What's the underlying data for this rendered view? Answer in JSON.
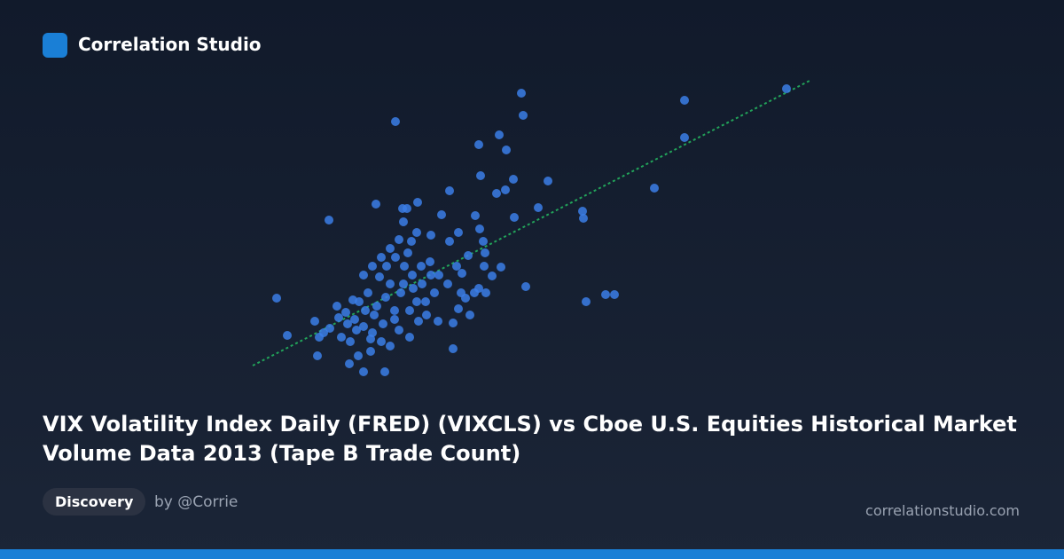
{
  "brand": "Correlation Studio",
  "title": "VIX Volatility Index Daily (FRED) (VIXCLS) vs Cboe U.S. Equities Historical Market Volume Data 2013 (Tape B Trade Count)",
  "tag": "Discovery",
  "author": "by @Corrie",
  "site": "correlationstudio.com",
  "chart_data": {
    "type": "scatter",
    "color": "#3b7ee6",
    "trend_color": "#22a35a",
    "xlim": [
      0,
      640
    ],
    "ylim": [
      0,
      335
    ],
    "x": [
      32,
      44,
      78,
      91,
      166,
      308,
      310,
      260,
      283,
      291,
      492,
      492,
      607,
      458,
      377,
      378,
      338,
      313,
      381,
      403,
      413,
      231,
      154,
      130,
      114,
      124,
      138,
      262,
      280,
      299,
      290,
      327,
      300,
      227,
      218,
      191,
      174,
      144,
      179,
      175,
      184,
      206,
      227,
      237,
      256,
      261,
      265,
      267,
      285,
      275,
      260,
      245,
      237,
      250,
      231,
      214,
      201,
      190,
      182,
      170,
      160,
      150,
      140,
      130,
      120,
      110,
      100,
      92,
      85,
      75,
      80,
      105,
      115,
      125,
      135,
      145,
      155,
      165,
      175,
      185,
      195,
      205,
      215,
      225,
      235,
      240,
      130,
      140,
      150,
      160,
      170,
      180,
      190,
      200,
      210,
      165,
      152,
      142,
      132,
      122,
      112,
      102,
      160,
      172,
      182,
      192,
      156,
      166,
      176,
      186,
      196,
      206,
      248,
      241,
      266,
      255,
      268,
      118,
      148,
      138
    ],
    "y": [
      89,
      47,
      24,
      177,
      288,
      320,
      295,
      262,
      273,
      256,
      312,
      270,
      325,
      213,
      187,
      179,
      221,
      102,
      85,
      93,
      93,
      32,
      6,
      6,
      15,
      24,
      29,
      227,
      207,
      223,
      211,
      191,
      180,
      210,
      183,
      197,
      190,
      195,
      190,
      175,
      153,
      160,
      153,
      163,
      182,
      167,
      153,
      140,
      124,
      114,
      100,
      89,
      77,
      70,
      61,
      63,
      70,
      85,
      45,
      53,
      35,
      40,
      50,
      57,
      65,
      73,
      80,
      55,
      50,
      63,
      45,
      45,
      40,
      85,
      95,
      80,
      90,
      75,
      105,
      115,
      125,
      130,
      115,
      105,
      125,
      95,
      115,
      125,
      135,
      145,
      155,
      140,
      163,
      85,
      95,
      65,
      60,
      70,
      75,
      53,
      60,
      67,
      105,
      95,
      75,
      63,
      125,
      135,
      125,
      100,
      105,
      115,
      137,
      117,
      125,
      95,
      95,
      87,
      113,
      43
    ],
    "trend": {
      "x": [
        5,
        635
      ],
      "y": [
        13,
        335
      ]
    }
  }
}
